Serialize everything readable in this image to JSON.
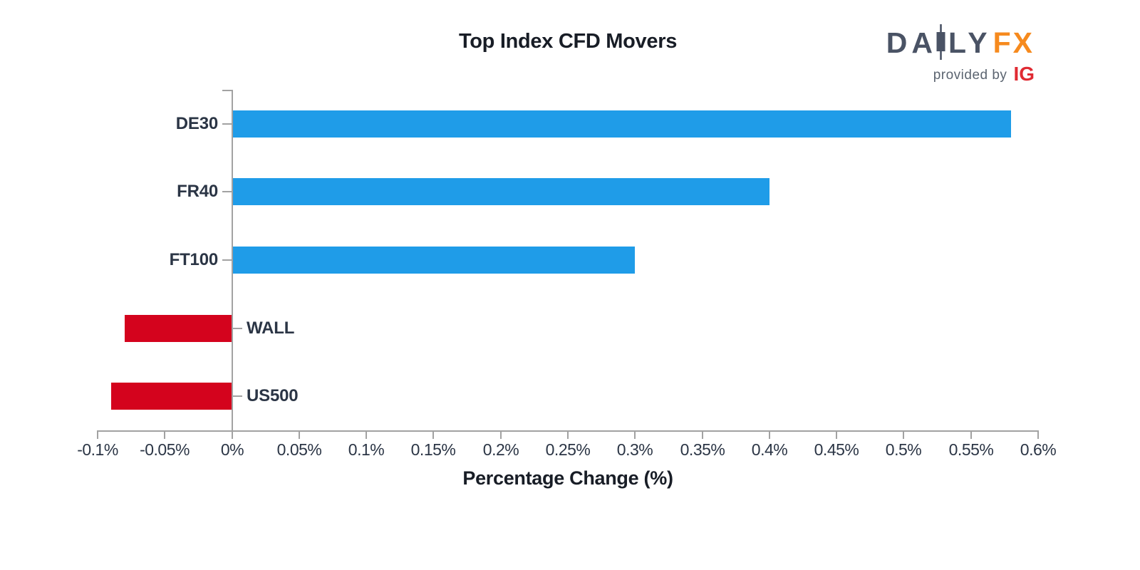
{
  "title": "Top Index CFD Movers",
  "logo": {
    "daily_prefix": "DA",
    "daily_suffix": "LY",
    "fx": "FX",
    "provided_by": "provided by",
    "ig": "IG",
    "daily_color": "#4A5365",
    "fx_color": "#F68A1E",
    "provided_color": "#5B6470",
    "ig_color": "#E02B33"
  },
  "chart_data": {
    "type": "bar",
    "orientation": "horizontal",
    "title": "Top Index CFD Movers",
    "xlabel": "Percentage Change (%)",
    "categories": [
      "DE30",
      "FR40",
      "FT100",
      "WALL",
      "US500"
    ],
    "values": [
      0.58,
      0.4,
      0.3,
      -0.08,
      -0.09
    ],
    "unit": "%",
    "xlim": [
      -0.1,
      0.6
    ],
    "xtick_step": 0.05,
    "xtick_labels": [
      "-0.1%",
      "-0.05%",
      "0%",
      "0.05%",
      "0.1%",
      "0.15%",
      "0.2%",
      "0.25%",
      "0.3%",
      "0.35%",
      "0.4%",
      "0.45%",
      "0.5%",
      "0.55%",
      "0.6%"
    ],
    "grid": false,
    "legend": false,
    "colors": {
      "positive_bar": "#1F9CE8",
      "negative_bar": "#D4031D",
      "axis": "#A2A2A2",
      "tick_label": "#2B3545",
      "category_label": "#2B3545",
      "axis_title": "#181D26"
    }
  }
}
